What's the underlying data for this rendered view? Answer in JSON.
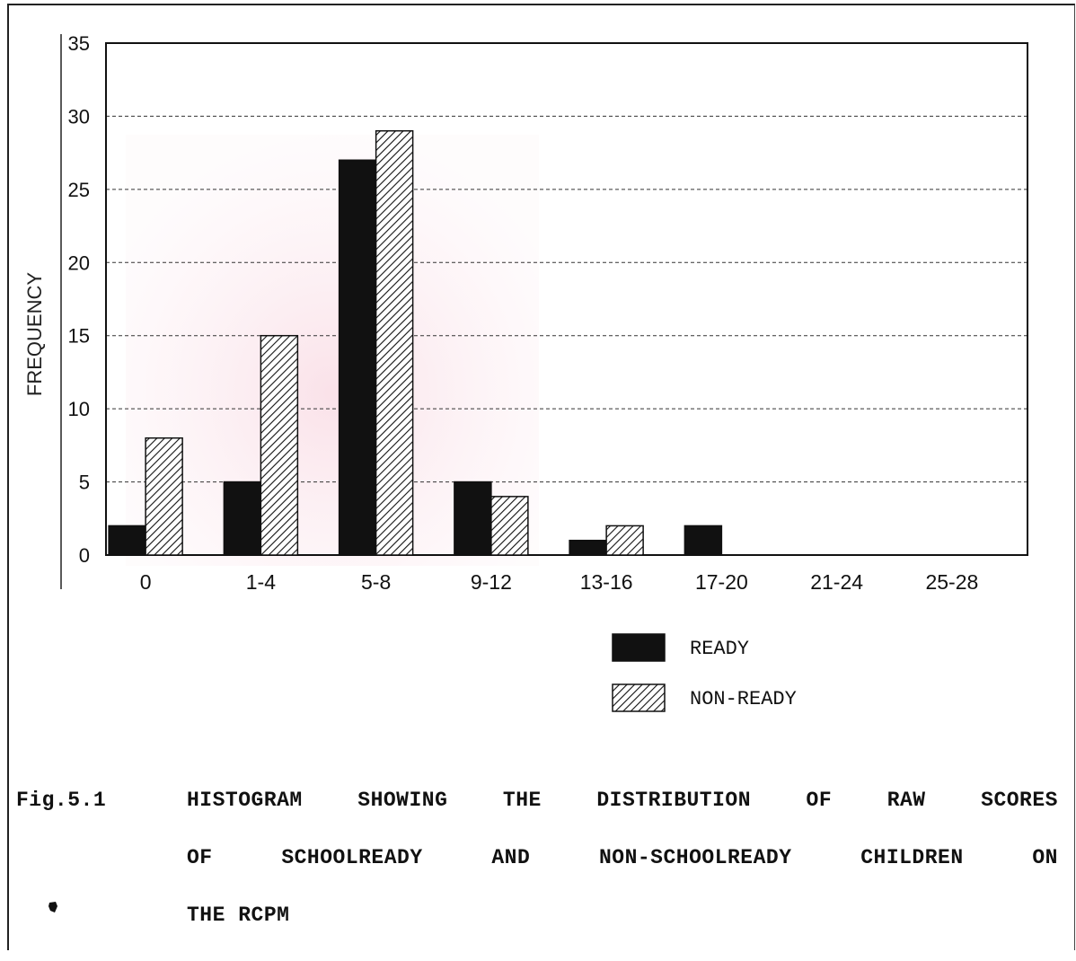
{
  "chart_data": {
    "type": "bar",
    "ylabel": "FREQUENCY",
    "xlabel": "",
    "categories": [
      "0",
      "1-4",
      "5-8",
      "9-12",
      "13-16",
      "17-20",
      "21-24",
      "25-28"
    ],
    "series": [
      {
        "name": "READY",
        "values": [
          2,
          5,
          27,
          5,
          1,
          2,
          0,
          0
        ],
        "fill": "solid",
        "color": "#111111"
      },
      {
        "name": "NON-READY",
        "values": [
          8,
          15,
          29,
          4,
          2,
          0,
          0,
          0
        ],
        "fill": "hatched",
        "color": "#111111"
      }
    ],
    "ylim": [
      0,
      35
    ],
    "yticks": [
      0,
      5,
      10,
      15,
      20,
      25,
      30,
      35
    ],
    "grid": "horizontal dashed",
    "legend_position": "bottom-center"
  },
  "caption": {
    "number": "Fig.5.1",
    "line1": [
      "HISTOGRAM",
      "SHOWING",
      "THE",
      "DISTRIBUTION",
      "OF",
      "RAW",
      "SCORES"
    ],
    "line2": [
      "OF",
      "SCHOOLREADY",
      "AND",
      "NON-SCHOOLREADY",
      "CHILDREN",
      "ON"
    ],
    "line3": "THE RCPM"
  }
}
